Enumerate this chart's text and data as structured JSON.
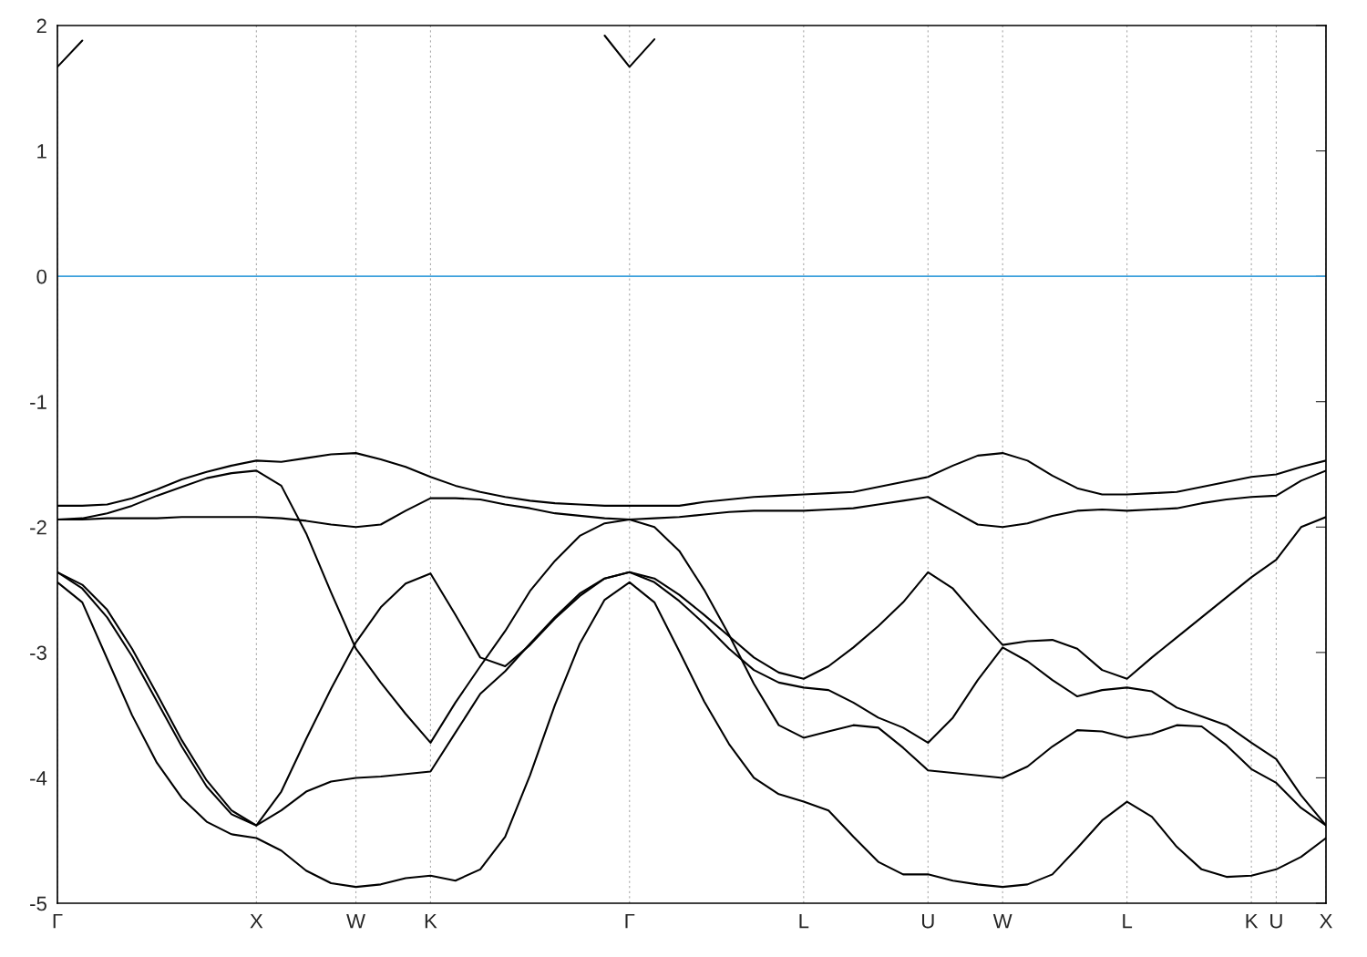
{
  "chart_data": {
    "type": "line",
    "categories": [
      "Γ",
      null,
      null,
      null,
      null,
      null,
      null,
      null,
      "X",
      null,
      null,
      null,
      "W",
      null,
      null,
      "K",
      null,
      null,
      null,
      null,
      null,
      null,
      null,
      "Γ",
      null,
      null,
      null,
      null,
      null,
      null,
      "L",
      null,
      null,
      null,
      null,
      "U",
      null,
      null,
      "W",
      null,
      null,
      null,
      null,
      "L",
      null,
      null,
      null,
      null,
      "K",
      "U",
      null,
      "X"
    ],
    "ylim": [
      -5,
      2
    ],
    "yticks": [
      -5,
      -4,
      -3,
      -2,
      -1,
      0,
      1,
      2
    ],
    "grid": "x",
    "ref_lines": [
      {
        "axis": "y",
        "value": 0,
        "color": "#3ca0dc"
      }
    ],
    "series": [
      {
        "color": "#000000",
        "values": [
          -1.83,
          -1.83,
          -1.82,
          -1.77,
          -1.7,
          -1.62,
          -1.56,
          -1.51,
          -1.47,
          -1.48,
          -1.45,
          -1.42,
          -1.41,
          -1.46,
          -1.52,
          -1.6,
          -1.67,
          -1.72,
          -1.76,
          -1.79,
          -1.81,
          -1.82,
          -1.83,
          -1.83,
          -1.83,
          -1.83,
          -1.8,
          -1.78,
          -1.76,
          -1.75,
          -1.74,
          -1.73,
          -1.72,
          -1.68,
          -1.64,
          -1.6,
          -1.51,
          -1.43,
          -1.41,
          -1.47,
          -1.59,
          -1.69,
          -1.74,
          -1.74,
          -1.73,
          -1.72,
          -1.68,
          -1.64,
          -1.6,
          -1.58,
          -1.52,
          -1.47
        ]
      },
      {
        "color": "#000000",
        "values": [
          -1.94,
          -1.94,
          -1.93,
          -1.93,
          -1.93,
          -1.92,
          -1.92,
          -1.92,
          -1.92,
          -1.93,
          -1.95,
          -1.98,
          -2.0,
          -1.98,
          -1.87,
          -1.77,
          -1.77,
          -1.78,
          -1.82,
          -1.85,
          -1.89,
          -1.91,
          -1.93,
          -1.94,
          -1.93,
          -1.92,
          -1.9,
          -1.88,
          -1.87,
          -1.87,
          -1.87,
          -1.86,
          -1.85,
          -1.82,
          -1.79,
          -1.76,
          -1.87,
          -1.98,
          -2.0,
          -1.97,
          -1.91,
          -1.87,
          -1.86,
          -1.87,
          -1.86,
          -1.85,
          -1.81,
          -1.78,
          -1.76,
          -1.75,
          -1.63,
          -1.55
        ]
      },
      {
        "color": "#000000",
        "values": [
          -1.94,
          -1.93,
          -1.89,
          -1.83,
          -1.75,
          -1.68,
          -1.61,
          -1.57,
          -1.55,
          -1.67,
          -2.05,
          -2.52,
          -2.97,
          -3.24,
          -3.49,
          -3.72,
          -3.4,
          -3.11,
          -2.83,
          -2.51,
          -2.27,
          -2.07,
          -1.97,
          -1.94,
          -2.0,
          -2.19,
          -2.5,
          -2.86,
          -3.25,
          -3.58,
          -3.68,
          -3.63,
          -3.58,
          -3.6,
          -3.76,
          -3.94,
          -3.96,
          -3.98,
          -4.0,
          -3.91,
          -3.75,
          -3.62,
          -3.63,
          -3.68,
          -3.65,
          -3.58,
          -3.59,
          -3.74,
          -3.93,
          -4.04,
          -4.24,
          -4.38
        ]
      },
      {
        "color": "#000000",
        "values": [
          -2.36,
          -2.46,
          -2.66,
          -2.97,
          -3.33,
          -3.7,
          -4.02,
          -4.26,
          -4.38,
          -4.11,
          -3.69,
          -3.29,
          -2.92,
          -2.64,
          -2.45,
          -2.37,
          -2.7,
          -3.04,
          -3.11,
          -2.94,
          -2.73,
          -2.55,
          -2.41,
          -2.36,
          -2.41,
          -2.54,
          -2.7,
          -2.87,
          -3.04,
          -3.16,
          -3.21,
          -3.11,
          -2.96,
          -2.79,
          -2.6,
          -2.36,
          -2.49,
          -2.72,
          -2.94,
          -2.91,
          -2.9,
          -2.97,
          -3.14,
          -3.21,
          -3.04,
          -2.88,
          -2.72,
          -2.56,
          -2.4,
          -2.26,
          -2.0,
          -1.92
        ]
      },
      {
        "color": "#000000",
        "values": [
          -2.36,
          -2.49,
          -2.72,
          -3.03,
          -3.39,
          -3.75,
          -4.07,
          -4.29,
          -4.38,
          -4.26,
          -4.11,
          -4.03,
          -4.0,
          -3.99,
          -3.97,
          -3.95,
          -3.64,
          -3.33,
          -3.15,
          -2.93,
          -2.72,
          -2.53,
          -2.41,
          -2.36,
          -2.44,
          -2.59,
          -2.77,
          -2.97,
          -3.14,
          -3.24,
          -3.28,
          -3.3,
          -3.4,
          -3.52,
          -3.6,
          -3.72,
          -3.52,
          -3.22,
          -2.96,
          -3.07,
          -3.22,
          -3.35,
          -3.3,
          -3.28,
          -3.31,
          -3.44,
          -3.51,
          -3.58,
          -3.72,
          -3.85,
          -4.14,
          -4.38
        ]
      },
      {
        "color": "#000000",
        "values": [
          -2.44,
          -2.6,
          -3.05,
          -3.5,
          -3.88,
          -4.16,
          -4.35,
          -4.45,
          -4.48,
          -4.58,
          -4.74,
          -4.84,
          -4.87,
          -4.85,
          -4.8,
          -4.78,
          -4.82,
          -4.73,
          -4.47,
          -3.98,
          -3.42,
          -2.93,
          -2.58,
          -2.44,
          -2.6,
          -2.99,
          -3.39,
          -3.73,
          -4.0,
          -4.13,
          -4.19,
          -4.26,
          -4.47,
          -4.67,
          -4.77,
          -4.77,
          -4.82,
          -4.85,
          -4.87,
          -4.85,
          -4.77,
          -4.56,
          -4.34,
          -4.19,
          -4.31,
          -4.55,
          -4.73,
          -4.79,
          -4.78,
          -4.73,
          -4.63,
          -4.48
        ]
      },
      {
        "color": "#000000",
        "values": [
          1.67,
          1.88,
          null,
          null,
          null,
          null,
          null,
          null,
          null,
          null,
          null,
          null,
          null,
          null,
          null,
          null,
          null,
          null,
          null,
          null,
          null,
          null,
          1.92,
          1.67,
          1.89,
          null,
          null,
          null,
          null,
          null,
          null,
          null,
          null,
          null,
          null,
          null,
          null,
          null,
          null,
          null,
          null,
          null,
          null,
          null,
          null,
          null,
          null,
          null,
          null,
          null,
          null,
          null
        ]
      }
    ]
  }
}
